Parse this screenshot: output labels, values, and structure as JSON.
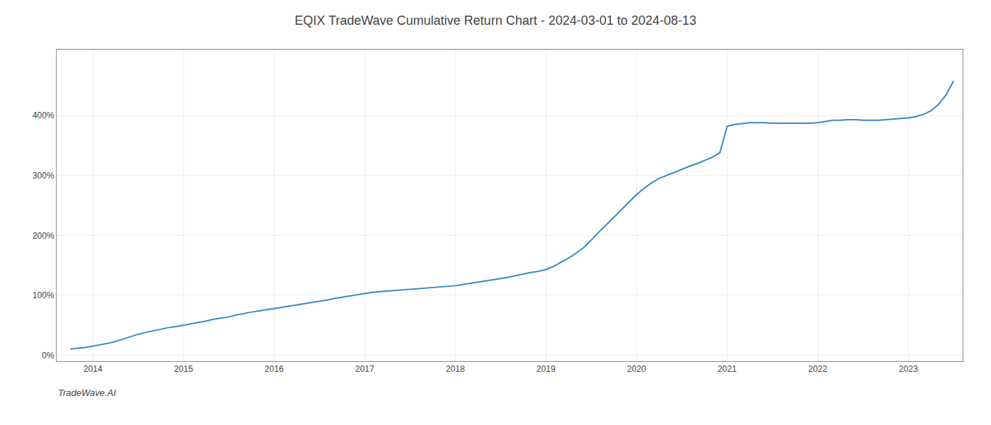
{
  "chart_data": {
    "type": "line",
    "title": "EQIX TradeWave Cumulative Return Chart - 2024-03-01 to 2024-08-13",
    "annotations": [
      "TradeWave.AI"
    ],
    "color": "#3a8abf",
    "grid": true,
    "x": [
      2013.75,
      2013.83,
      2013.92,
      2014.0,
      2014.08,
      2014.17,
      2014.25,
      2014.33,
      2014.42,
      2014.5,
      2014.58,
      2014.67,
      2014.75,
      2014.83,
      2014.92,
      2015.0,
      2015.08,
      2015.17,
      2015.25,
      2015.33,
      2015.42,
      2015.5,
      2015.58,
      2015.67,
      2015.75,
      2015.83,
      2015.92,
      2016.0,
      2016.08,
      2016.17,
      2016.25,
      2016.33,
      2016.42,
      2016.5,
      2016.58,
      2016.67,
      2016.75,
      2016.83,
      2016.92,
      2017.0,
      2017.08,
      2017.17,
      2017.25,
      2017.33,
      2017.42,
      2017.5,
      2017.58,
      2017.67,
      2017.75,
      2017.83,
      2017.92,
      2018.0,
      2018.08,
      2018.17,
      2018.25,
      2018.33,
      2018.42,
      2018.5,
      2018.58,
      2018.67,
      2018.75,
      2018.83,
      2018.92,
      2019.0,
      2019.08,
      2019.17,
      2019.25,
      2019.33,
      2019.42,
      2019.5,
      2019.58,
      2019.67,
      2019.75,
      2019.83,
      2019.92,
      2020.0,
      2020.08,
      2020.17,
      2020.25,
      2020.33,
      2020.42,
      2020.5,
      2020.58,
      2020.67,
      2020.75,
      2020.83,
      2020.92,
      2021.0,
      2021.08,
      2021.17,
      2021.25,
      2021.33,
      2021.42,
      2021.5,
      2021.58,
      2021.67,
      2021.75,
      2021.83,
      2021.92,
      2022.0,
      2022.08,
      2022.17,
      2022.25,
      2022.33,
      2022.42,
      2022.5,
      2022.58,
      2022.67,
      2022.75,
      2022.83,
      2022.92,
      2023.0,
      2023.08,
      2023.17,
      2023.25,
      2023.33,
      2023.42,
      2023.5
    ],
    "values": [
      0.1,
      0.12,
      0.13,
      0.15,
      0.17,
      0.2,
      0.23,
      0.27,
      0.31,
      0.35,
      0.38,
      0.41,
      0.44,
      0.46,
      0.48,
      0.5,
      0.52,
      0.55,
      0.57,
      0.6,
      0.62,
      0.64,
      0.67,
      0.7,
      0.72,
      0.74,
      0.76,
      0.78,
      0.8,
      0.82,
      0.84,
      0.86,
      0.88,
      0.9,
      0.92,
      0.95,
      0.97,
      0.99,
      1.01,
      1.03,
      1.05,
      1.06,
      1.07,
      1.08,
      1.09,
      1.1,
      1.11,
      1.12,
      1.13,
      1.14,
      1.15,
      1.16,
      1.18,
      1.2,
      1.22,
      1.24,
      1.26,
      1.28,
      1.3,
      1.33,
      1.36,
      1.38,
      1.4,
      1.43,
      1.48,
      1.55,
      1.62,
      1.7,
      1.8,
      1.92,
      2.05,
      2.18,
      2.3,
      2.42,
      2.55,
      2.68,
      2.78,
      2.88,
      2.95,
      3.0,
      3.05,
      3.1,
      3.15,
      3.2,
      3.25,
      3.3,
      3.38,
      3.82,
      3.85,
      3.87,
      3.88,
      3.88,
      3.88,
      3.87,
      3.87,
      3.87,
      3.87,
      3.87,
      3.87,
      3.88,
      3.9,
      3.92,
      3.92,
      3.93,
      3.93,
      3.92,
      3.92,
      3.92,
      3.93,
      3.94,
      3.95,
      3.96,
      3.98,
      4.02,
      4.08,
      4.18,
      4.35,
      4.58
    ],
    "xlim": [
      2013.6,
      2023.6
    ],
    "xticks": [
      2014,
      2015,
      2016,
      2017,
      2018,
      2019,
      2020,
      2021,
      2022,
      2023
    ],
    "ylim": [
      -0.1,
      5.1
    ],
    "yticks": [
      {
        "value": 0,
        "label": "0%"
      },
      {
        "value": 1,
        "label": "100%"
      },
      {
        "value": 2,
        "label": "200%"
      },
      {
        "value": 3,
        "label": "300%"
      },
      {
        "value": 4,
        "label": "400%"
      }
    ]
  }
}
